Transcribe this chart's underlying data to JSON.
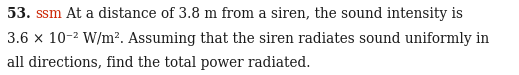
{
  "background_color": "#ffffff",
  "text_color": "#1a1a1a",
  "ssm_color": "#cc2200",
  "number": "53.",
  "ssm": "ssm",
  "line1_rest": " At a distance of 3.8 m from a siren, the sound intensity is",
  "line2": "3.6 × 10⁻² W/m². Assuming that the siren radiates sound uniformly in",
  "line3": "all directions, find the total power radiated.",
  "font_size": 9.8,
  "fig_width": 5.19,
  "fig_height": 0.75,
  "dpi": 100
}
